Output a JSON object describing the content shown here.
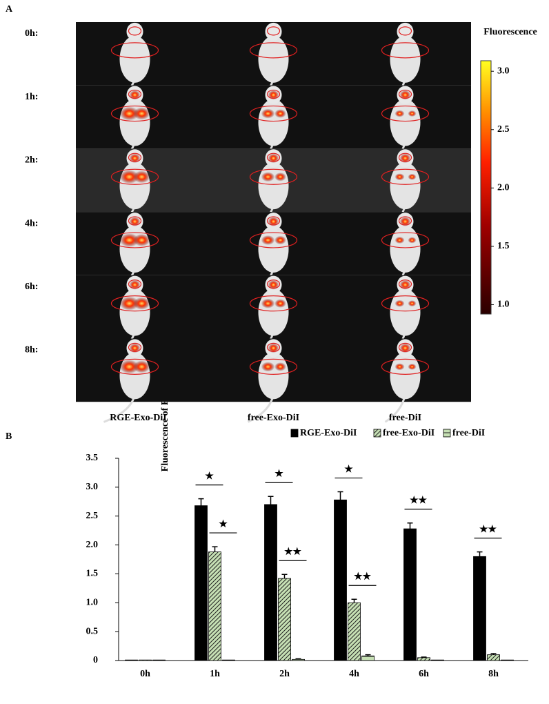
{
  "panel_a": {
    "label": "A",
    "row_labels": [
      "0h:",
      "1h:",
      "2h:",
      "4h:",
      "6h:",
      "8h:"
    ],
    "column_labels": [
      "RGE-Exo-DiI",
      "free-Exo-DiI",
      "free-DiI"
    ],
    "colorbar": {
      "title": "Fluorescence",
      "lim": [
        0.92,
        3.09
      ],
      "ticks": [
        {
          "value": 1,
          "label": "1.0"
        },
        1.5,
        {
          "value": 2,
          "label": "2.0"
        },
        2.5,
        {
          "value": 3,
          "label": "3.0"
        }
      ]
    }
  },
  "panel_b": {
    "label": "B"
  },
  "chart_data": {
    "type": "bar",
    "ylabel": "Fluorescence of ROI",
    "categories": [
      "0h",
      "1h",
      "2h",
      "4h",
      "6h",
      "8h"
    ],
    "series": [
      {
        "name": "RGE-Exo-DiI",
        "color": "#000000",
        "pattern": "solid",
        "values": [
          0.01,
          2.68,
          2.7,
          2.78,
          2.28,
          1.8
        ],
        "errors": [
          0,
          0.12,
          0.14,
          0.14,
          0.1,
          0.08
        ]
      },
      {
        "name": "free-Exo-DiI",
        "color": "#c6e0b4",
        "pattern": "diagonal",
        "values": [
          0.01,
          1.88,
          1.42,
          1.0,
          0.05,
          0.1
        ],
        "errors": [
          0,
          0.09,
          0.07,
          0.06,
          0.01,
          0.02
        ]
      },
      {
        "name": "free-DiI",
        "color": "#c6e0b4",
        "pattern": "horizontal",
        "values": [
          0.01,
          0.01,
          0.02,
          0.08,
          0.01,
          0.01
        ],
        "errors": [
          0,
          0,
          0.01,
          0.02,
          0,
          0
        ]
      }
    ],
    "ylim": [
      0,
      3.5
    ],
    "yticks": [
      0,
      0.5,
      {
        "value": 1,
        "label": "1.0"
      },
      1.5,
      {
        "value": 2,
        "label": "2.0"
      },
      2.5,
      {
        "value": 3,
        "label": "3.0"
      },
      3.5
    ],
    "annotations": [
      "★",
      "★",
      "★",
      "★★",
      "★",
      "★★",
      "★★",
      "★★"
    ],
    "legend": "top-right"
  }
}
